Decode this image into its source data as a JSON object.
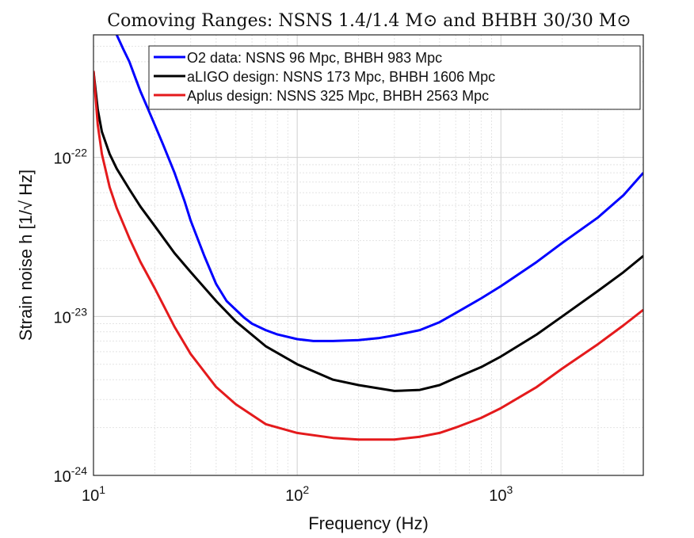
{
  "chart_data": {
    "type": "line",
    "title": "Comoving Ranges: NSNS 1.4/1.4 M⊙ and BHBH 30/30 M⊙",
    "xlabel": "Frequency (Hz)",
    "ylabel": "Strain noise h [1/√ Hz]",
    "x_scale": "log",
    "y_scale": "log",
    "xlim": [
      10,
      5000
    ],
    "ylim": [
      1e-24,
      5.9e-22
    ],
    "grid": true,
    "legend_position": "top-right",
    "x_ticks": [
      {
        "base": "10",
        "exp": "1",
        "value": 10
      },
      {
        "base": "10",
        "exp": "2",
        "value": 100
      },
      {
        "base": "10",
        "exp": "3",
        "value": 1000
      }
    ],
    "y_ticks": [
      {
        "base": "10",
        "exp": "-24",
        "value": 1e-24
      },
      {
        "base": "10",
        "exp": "-23",
        "value": 1e-23
      },
      {
        "base": "10",
        "exp": "-22",
        "value": 1e-22
      }
    ],
    "series": [
      {
        "name": "O2 data: NSNS 96 Mpc, BHBH 983 Mpc",
        "color": "#0000ff",
        "x": [
          13,
          14,
          15,
          16,
          17,
          18,
          20,
          22,
          25,
          28,
          30,
          35,
          40,
          45,
          50,
          55,
          60,
          70,
          80,
          100,
          120,
          150,
          200,
          250,
          300,
          400,
          500,
          600,
          800,
          1000,
          1500,
          2000,
          3000,
          4000,
          5000
        ],
        "y": [
          5.9e-22,
          4.8e-22,
          4e-22,
          3.2e-22,
          2.6e-22,
          2.2e-22,
          1.6e-22,
          1.2e-22,
          8e-23,
          5.3e-23,
          4e-23,
          2.4e-23,
          1.6e-23,
          1.25e-23,
          1.1e-23,
          9.8e-24,
          9e-24,
          8.2e-24,
          7.7e-24,
          7.2e-24,
          7e-24,
          7e-24,
          7.1e-24,
          7.3e-24,
          7.6e-24,
          8.2e-24,
          9.2e-24,
          1.05e-23,
          1.3e-23,
          1.55e-23,
          2.2e-23,
          2.9e-23,
          4.2e-23,
          5.8e-23,
          8e-23
        ]
      },
      {
        "name": "aLIGO design: NSNS 173 Mpc, BHBH 1606 Mpc",
        "color": "#000000",
        "x": [
          10,
          10.5,
          11,
          12,
          13,
          15,
          17,
          20,
          25,
          30,
          40,
          50,
          70,
          100,
          150,
          200,
          300,
          400,
          500,
          600,
          800,
          1000,
          1500,
          2000,
          3000,
          4000,
          5000
        ],
        "y": [
          3.5e-22,
          2e-22,
          1.45e-22,
          1.05e-22,
          8.5e-23,
          6.3e-23,
          4.9e-23,
          3.7e-23,
          2.5e-23,
          1.9e-23,
          1.25e-23,
          9.3e-24,
          6.5e-24,
          5e-24,
          4e-24,
          3.7e-24,
          3.4e-24,
          3.45e-24,
          3.7e-24,
          4.1e-24,
          4.8e-24,
          5.6e-24,
          7.7e-24,
          1e-23,
          1.45e-23,
          1.9e-23,
          2.4e-23
        ]
      },
      {
        "name": "Aplus design: NSNS 325 Mpc, BHBH 2563 Mpc",
        "color": "#e41a1c",
        "x": [
          10,
          10.5,
          11,
          12,
          13,
          15,
          17,
          20,
          25,
          30,
          40,
          50,
          70,
          100,
          150,
          200,
          300,
          400,
          500,
          600,
          800,
          1000,
          1500,
          2000,
          3000,
          4000,
          5000
        ],
        "y": [
          3.5e-22,
          1.6e-22,
          1.05e-22,
          6.5e-23,
          4.8e-23,
          3.1e-23,
          2.2e-23,
          1.5e-23,
          8.6e-24,
          5.8e-24,
          3.6e-24,
          2.8e-24,
          2.1e-24,
          1.85e-24,
          1.72e-24,
          1.68e-24,
          1.68e-24,
          1.75e-24,
          1.85e-24,
          2e-24,
          2.3e-24,
          2.65e-24,
          3.6e-24,
          4.7e-24,
          6.7e-24,
          8.8e-24,
          1.1e-23
        ]
      }
    ]
  }
}
